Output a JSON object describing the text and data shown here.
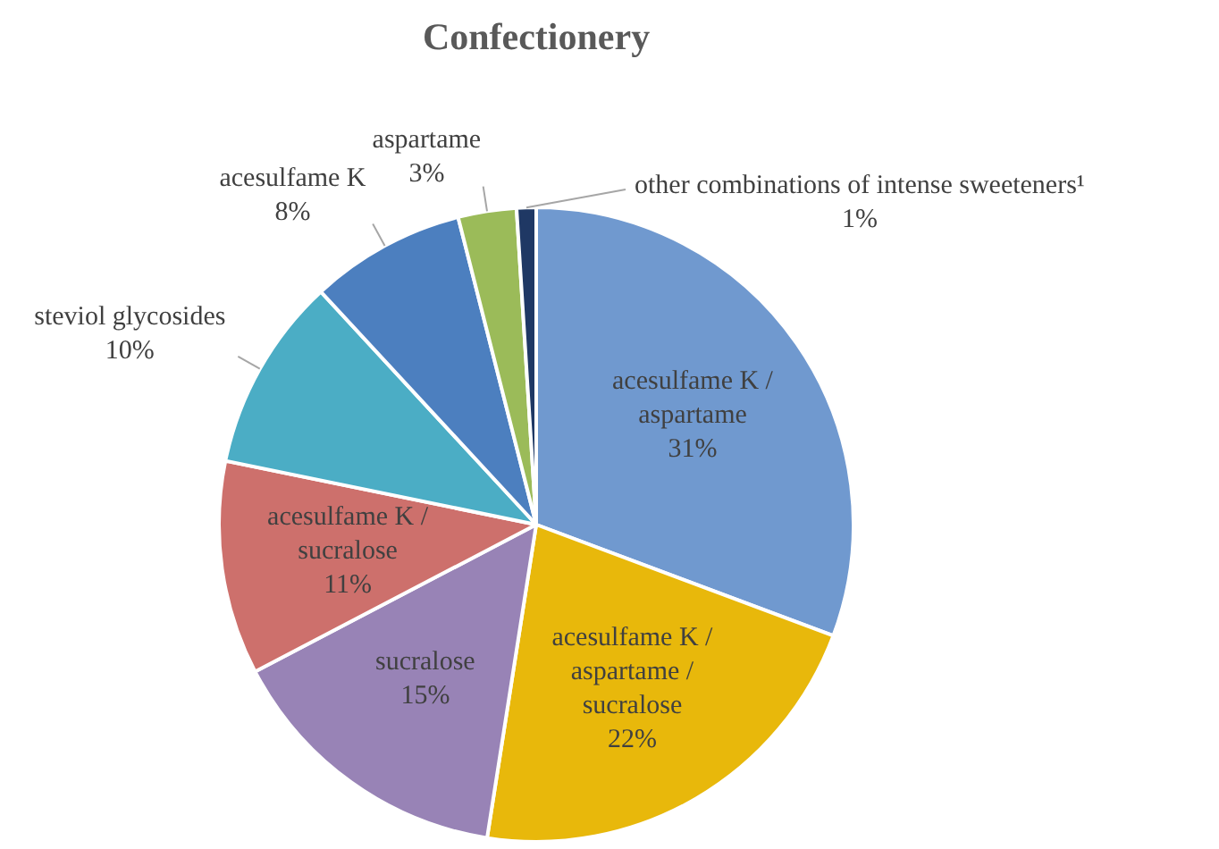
{
  "chart_data": {
    "type": "pie",
    "title": "Confectionery",
    "categories": [
      "acesulfame K / aspartame",
      "acesulfame K / aspartame / sucralose",
      "sucralose",
      "acesulfame K / sucralose",
      "steviol glycosides",
      "acesulfame K",
      "aspartame",
      "other combinations of intense sweeteners¹"
    ],
    "values": [
      31,
      22,
      15,
      11,
      10,
      8,
      3,
      1
    ],
    "value_labels": [
      "31%",
      "22%",
      "15%",
      "11%",
      "10%",
      "8%",
      "3%",
      "1%"
    ],
    "colors": [
      "#7099cf",
      "#e8b80b",
      "#9883b6",
      "#cd706c",
      "#4badc5",
      "#4c7fbf",
      "#9bbb59",
      "#1f3864"
    ],
    "legend": false
  }
}
